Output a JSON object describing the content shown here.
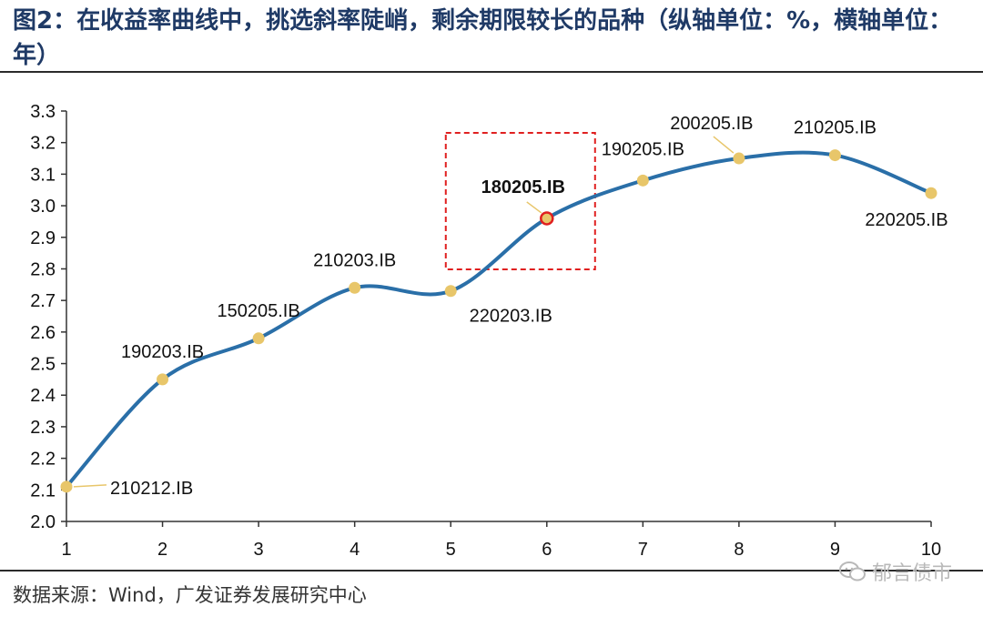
{
  "header": {
    "title": "图2：在收益率曲线中，挑选斜率陡峭，剩余期限较长的品种（纵轴单位：%，横轴单位：年）"
  },
  "footer": {
    "source": "数据来源：Wind，广发证券发展研究中心",
    "watermark": "郁言债市"
  },
  "chart_data": {
    "type": "line",
    "title": "",
    "xlabel": "",
    "ylabel": "",
    "xlim": [
      1,
      10
    ],
    "ylim": [
      2.0,
      3.3
    ],
    "x_ticks": [
      1,
      2,
      3,
      4,
      5,
      6,
      7,
      8,
      9,
      10
    ],
    "y_ticks": [
      2.0,
      2.1,
      2.2,
      2.3,
      2.4,
      2.5,
      2.6,
      2.7,
      2.8,
      2.9,
      3.0,
      3.1,
      3.2,
      3.3
    ],
    "line_color": "#2a6fa8",
    "marker_color": "#e8c66a",
    "highlight_color": "#e02020",
    "points": [
      {
        "x": 1,
        "y": 2.11,
        "label": "210212.IB"
      },
      {
        "x": 2,
        "y": 2.45,
        "label": "190203.IB"
      },
      {
        "x": 3,
        "y": 2.58,
        "label": "150205.IB"
      },
      {
        "x": 4,
        "y": 2.74,
        "label": "210203.IB"
      },
      {
        "x": 5,
        "y": 2.73,
        "label": "220203.IB"
      },
      {
        "x": 6,
        "y": 2.96,
        "label": "180205.IB",
        "highlight": true
      },
      {
        "x": 7,
        "y": 3.08,
        "label": "190205.IB"
      },
      {
        "x": 8,
        "y": 3.15,
        "label": "200205.IB"
      },
      {
        "x": 9,
        "y": 3.16,
        "label": "210205.IB"
      },
      {
        "x": 10,
        "y": 3.04,
        "label": "220205.IB"
      }
    ]
  }
}
